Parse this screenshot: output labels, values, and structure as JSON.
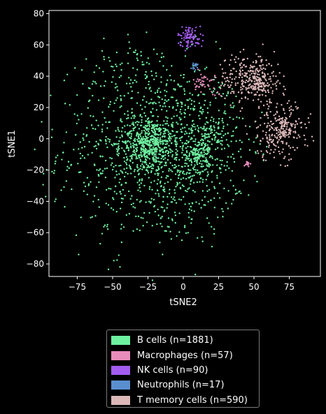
{
  "chart_data": {
    "type": "scatter",
    "title": "",
    "xlabel": "tSNE2",
    "ylabel": "tSNE1",
    "xlim": [
      -95,
      97
    ],
    "ylim": [
      -88,
      82
    ],
    "x_ticks": [
      -75,
      -50,
      -25,
      0,
      25,
      50,
      75
    ],
    "y_ticks": [
      -80,
      -60,
      -40,
      -20,
      0,
      20,
      40,
      60,
      80
    ],
    "grid": false,
    "legend_placement": "below",
    "series": [
      {
        "name": "B cells (n=1881)",
        "color": "#6ef0a0",
        "n": 1881,
        "clusters": [
          {
            "cx": -22,
            "cy": -8,
            "sx": 33,
            "sy": 30,
            "count": 900,
            "rmax": 85
          },
          {
            "cx": -25,
            "cy": -2,
            "sx": 9,
            "sy": 8,
            "count": 420,
            "rmax": 40
          },
          {
            "cx": 5,
            "cy": -8,
            "sx": 18,
            "sy": 22,
            "count": 330,
            "rmax": 55
          },
          {
            "cx": 10,
            "cy": -9,
            "sx": 5,
            "sy": 5,
            "count": 120,
            "rmax": 20
          },
          {
            "cx": 22,
            "cy": 5,
            "sx": 6,
            "sy": 5,
            "count": 60,
            "rmax": 18
          },
          {
            "cx": -40,
            "cy": 45,
            "sx": 14,
            "sy": 12,
            "count": 51,
            "rmax": 30
          }
        ]
      },
      {
        "name": "Macrophages (n=57)",
        "color": "#e88cbb",
        "n": 57,
        "clusters": [
          {
            "cx": 15,
            "cy": 36,
            "sx": 4,
            "sy": 3,
            "count": 40,
            "rmax": 10
          },
          {
            "cx": 46,
            "cy": -16,
            "sx": 1.2,
            "sy": 1.5,
            "count": 12,
            "rmax": 4
          },
          {
            "cx": 22,
            "cy": 29,
            "sx": 2,
            "sy": 2,
            "count": 5,
            "rmax": 5
          }
        ]
      },
      {
        "name": "NK cells (n=90)",
        "color": "#a35cf0",
        "n": 90,
        "clusters": [
          {
            "cx": 5,
            "cy": 65,
            "sx": 4.5,
            "sy": 3.5,
            "count": 90,
            "rmax": 10
          }
        ]
      },
      {
        "name": "Neutrophils (n=17)",
        "color": "#5a8fcf",
        "n": 17,
        "clusters": [
          {
            "cx": 8,
            "cy": 46,
            "sx": 2,
            "sy": 1.5,
            "count": 17,
            "rmax": 4
          }
        ]
      },
      {
        "name": "T memory cells (n=590)",
        "color": "#dcb8b8",
        "n": 590,
        "clusters": [
          {
            "cx": 48,
            "cy": 38,
            "sx": 12,
            "sy": 8,
            "count": 290,
            "rmax": 25
          },
          {
            "cx": 55,
            "cy": 35,
            "sx": 3,
            "sy": 3,
            "count": 40,
            "rmax": 8
          },
          {
            "cx": 68,
            "cy": 5,
            "sx": 11,
            "sy": 9,
            "count": 230,
            "rmax": 25
          },
          {
            "cx": 72,
            "cy": 6,
            "sx": 3,
            "sy": 3,
            "count": 30,
            "rmax": 8
          }
        ]
      }
    ]
  }
}
